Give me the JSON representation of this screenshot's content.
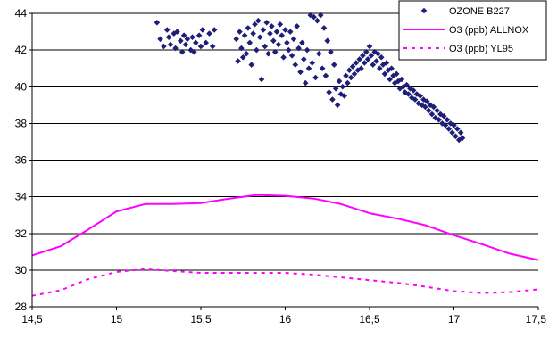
{
  "chart_data": {
    "type": "scatter",
    "title": "",
    "xlabel": "",
    "ylabel": "",
    "xlim": [
      14.5,
      17.5
    ],
    "ylim": [
      28,
      44
    ],
    "x_ticks": [
      "14,5",
      "15",
      "15,5",
      "16",
      "16,5",
      "17",
      "17,5"
    ],
    "y_ticks": [
      "28",
      "30",
      "32",
      "34",
      "36",
      "38",
      "40",
      "42",
      "44"
    ],
    "grid": "horizontal",
    "legend_position": "top-right",
    "series": [
      {
        "name": "OZONE B227",
        "kind": "scatter",
        "marker": "diamond",
        "color": "#1f1f78",
        "points": [
          [
            15.24,
            43.5
          ],
          [
            15.26,
            42.6
          ],
          [
            15.28,
            42.2
          ],
          [
            15.3,
            43.1
          ],
          [
            15.31,
            42.7
          ],
          [
            15.32,
            42.3
          ],
          [
            15.34,
            42.9
          ],
          [
            15.35,
            42.1
          ],
          [
            15.36,
            43.0
          ],
          [
            15.38,
            42.5
          ],
          [
            15.39,
            41.9
          ],
          [
            15.4,
            42.8
          ],
          [
            15.41,
            42.3
          ],
          [
            15.42,
            42.6
          ],
          [
            15.44,
            42.0
          ],
          [
            15.45,
            42.7
          ],
          [
            15.46,
            41.9
          ],
          [
            15.47,
            42.4
          ],
          [
            15.49,
            42.8
          ],
          [
            15.5,
            42.2
          ],
          [
            15.51,
            43.1
          ],
          [
            15.53,
            42.4
          ],
          [
            15.55,
            42.9
          ],
          [
            15.57,
            42.2
          ],
          [
            15.58,
            43.1
          ],
          [
            15.71,
            42.6
          ],
          [
            15.72,
            41.4
          ],
          [
            15.73,
            43.0
          ],
          [
            15.74,
            42.1
          ],
          [
            15.75,
            41.6
          ],
          [
            15.76,
            42.8
          ],
          [
            15.77,
            41.8
          ],
          [
            15.78,
            43.2
          ],
          [
            15.79,
            42.4
          ],
          [
            15.8,
            41.2
          ],
          [
            15.81,
            42.9
          ],
          [
            15.82,
            43.4
          ],
          [
            15.83,
            42.0
          ],
          [
            15.84,
            43.6
          ],
          [
            15.85,
            42.7
          ],
          [
            15.86,
            40.4
          ],
          [
            15.87,
            43.1
          ],
          [
            15.88,
            42.2
          ],
          [
            15.89,
            43.5
          ],
          [
            15.9,
            41.8
          ],
          [
            15.91,
            42.9
          ],
          [
            15.92,
            43.3
          ],
          [
            15.93,
            42.5
          ],
          [
            15.94,
            41.9
          ],
          [
            15.95,
            43.0
          ],
          [
            15.96,
            42.3
          ],
          [
            15.97,
            43.4
          ],
          [
            15.98,
            42.8
          ],
          [
            15.99,
            41.6
          ],
          [
            16.0,
            43.1
          ],
          [
            16.01,
            42.4
          ],
          [
            16.02,
            42.0
          ],
          [
            16.03,
            43.0
          ],
          [
            16.04,
            41.7
          ],
          [
            16.05,
            42.6
          ],
          [
            16.06,
            41.2
          ],
          [
            16.07,
            43.3
          ],
          [
            16.08,
            42.1
          ],
          [
            16.09,
            40.8
          ],
          [
            16.1,
            42.4
          ],
          [
            16.11,
            41.5
          ],
          [
            16.12,
            40.2
          ],
          [
            16.13,
            42.0
          ],
          [
            16.14,
            41.0
          ],
          [
            16.15,
            43.9
          ],
          [
            16.16,
            41.3
          ],
          [
            16.17,
            43.8
          ],
          [
            16.18,
            40.5
          ],
          [
            16.19,
            43.6
          ],
          [
            16.2,
            41.8
          ],
          [
            16.21,
            43.9
          ],
          [
            16.22,
            41.0
          ],
          [
            16.23,
            43.2
          ],
          [
            16.24,
            40.6
          ],
          [
            16.25,
            42.5
          ],
          [
            16.26,
            39.7
          ],
          [
            16.27,
            41.9
          ],
          [
            16.28,
            39.3
          ],
          [
            16.29,
            41.2
          ],
          [
            16.3,
            39.9
          ],
          [
            16.31,
            39.0
          ],
          [
            16.32,
            40.3
          ],
          [
            16.33,
            39.6
          ],
          [
            16.34,
            40.0
          ],
          [
            16.35,
            39.5
          ],
          [
            16.36,
            40.6
          ],
          [
            16.37,
            40.2
          ],
          [
            16.38,
            40.9
          ],
          [
            16.39,
            40.5
          ],
          [
            16.4,
            41.1
          ],
          [
            16.41,
            40.7
          ],
          [
            16.42,
            41.3
          ],
          [
            16.43,
            40.9
          ],
          [
            16.44,
            41.5
          ],
          [
            16.45,
            41.0
          ],
          [
            16.46,
            41.7
          ],
          [
            16.47,
            41.3
          ],
          [
            16.48,
            41.9
          ],
          [
            16.49,
            41.5
          ],
          [
            16.5,
            42.2
          ],
          [
            16.51,
            41.7
          ],
          [
            16.52,
            41.2
          ],
          [
            16.53,
            41.9
          ],
          [
            16.54,
            41.4
          ],
          [
            16.55,
            41.8
          ],
          [
            16.56,
            41.0
          ],
          [
            16.57,
            41.6
          ],
          [
            16.58,
            41.2
          ],
          [
            16.59,
            40.7
          ],
          [
            16.6,
            41.3
          ],
          [
            16.61,
            40.9
          ],
          [
            16.62,
            40.4
          ],
          [
            16.63,
            41.0
          ],
          [
            16.64,
            40.6
          ],
          [
            16.65,
            40.2
          ],
          [
            16.66,
            40.7
          ],
          [
            16.67,
            40.3
          ],
          [
            16.68,
            39.9
          ],
          [
            16.69,
            40.4
          ],
          [
            16.7,
            40.0
          ],
          [
            16.71,
            39.7
          ],
          [
            16.72,
            40.1
          ],
          [
            16.73,
            39.6
          ],
          [
            16.74,
            39.9
          ],
          [
            16.75,
            39.4
          ],
          [
            16.76,
            39.8
          ],
          [
            16.77,
            39.3
          ],
          [
            16.78,
            39.6
          ],
          [
            16.79,
            39.1
          ],
          [
            16.8,
            39.5
          ],
          [
            16.81,
            39.0
          ],
          [
            16.82,
            39.3
          ],
          [
            16.83,
            38.9
          ],
          [
            16.84,
            39.2
          ],
          [
            16.85,
            38.7
          ],
          [
            16.86,
            39.0
          ],
          [
            16.87,
            38.5
          ],
          [
            16.88,
            38.9
          ],
          [
            16.89,
            38.3
          ],
          [
            16.9,
            38.7
          ],
          [
            16.91,
            38.2
          ],
          [
            16.92,
            38.5
          ],
          [
            16.93,
            38.0
          ],
          [
            16.94,
            38.4
          ],
          [
            16.95,
            37.9
          ],
          [
            16.96,
            38.2
          ],
          [
            16.97,
            37.7
          ],
          [
            16.98,
            38.0
          ],
          [
            16.99,
            37.5
          ],
          [
            17.0,
            37.9
          ],
          [
            17.01,
            37.3
          ],
          [
            17.02,
            37.7
          ],
          [
            17.03,
            37.1
          ],
          [
            17.04,
            37.5
          ],
          [
            17.05,
            37.2
          ]
        ]
      },
      {
        "name": "O3 (ppb) ALLNOX",
        "kind": "line",
        "dash": "solid",
        "color": "#ff00ff",
        "points": [
          [
            14.5,
            30.8
          ],
          [
            14.67,
            31.3
          ],
          [
            14.83,
            32.2
          ],
          [
            15.0,
            33.2
          ],
          [
            15.17,
            33.6
          ],
          [
            15.33,
            33.6
          ],
          [
            15.5,
            33.65
          ],
          [
            15.67,
            33.9
          ],
          [
            15.83,
            34.1
          ],
          [
            16.0,
            34.05
          ],
          [
            16.17,
            33.9
          ],
          [
            16.33,
            33.6
          ],
          [
            16.5,
            33.1
          ],
          [
            16.67,
            32.8
          ],
          [
            16.83,
            32.45
          ],
          [
            17.0,
            31.9
          ],
          [
            17.17,
            31.4
          ],
          [
            17.33,
            30.9
          ],
          [
            17.5,
            30.55
          ]
        ]
      },
      {
        "name": "O3 (ppb) YL95",
        "kind": "line",
        "dash": "dashed",
        "color": "#ff00ff",
        "points": [
          [
            14.5,
            28.6
          ],
          [
            14.67,
            28.9
          ],
          [
            14.83,
            29.5
          ],
          [
            15.0,
            29.9
          ],
          [
            15.17,
            30.05
          ],
          [
            15.33,
            29.95
          ],
          [
            15.5,
            29.85
          ],
          [
            15.67,
            29.85
          ],
          [
            15.83,
            29.85
          ],
          [
            16.0,
            29.85
          ],
          [
            16.17,
            29.75
          ],
          [
            16.33,
            29.6
          ],
          [
            16.5,
            29.45
          ],
          [
            16.67,
            29.3
          ],
          [
            16.83,
            29.1
          ],
          [
            17.0,
            28.85
          ],
          [
            17.17,
            28.75
          ],
          [
            17.33,
            28.8
          ],
          [
            17.5,
            28.95
          ]
        ]
      }
    ]
  }
}
